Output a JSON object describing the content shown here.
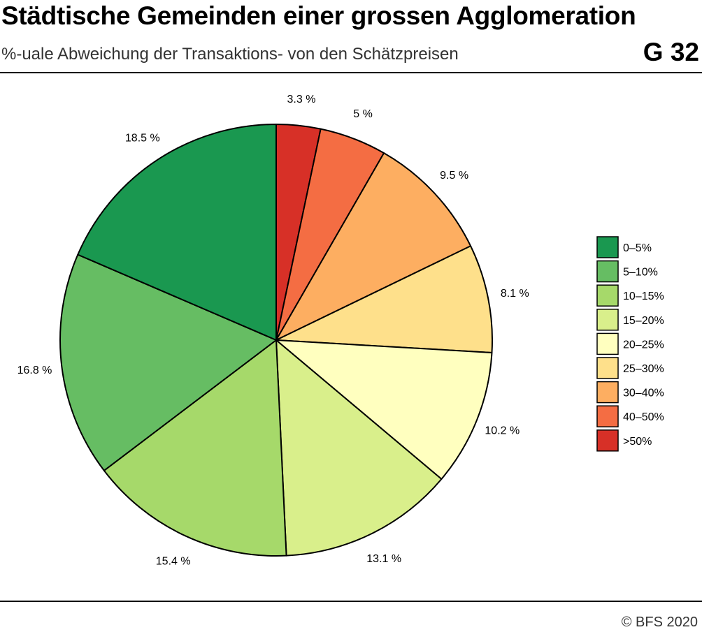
{
  "header": {
    "title": "Städtische Gemeinden einer grossen Agglomeration",
    "subtitle": "%-uale Abweichung der Transaktions- von den Schätzpreisen",
    "chart_id": "G 32"
  },
  "footer": {
    "source": "© BFS 2020"
  },
  "chart_data": {
    "type": "pie",
    "title": "Städtische Gemeinden einer grossen Agglomeration",
    "subtitle": "%-uale Abweichung der Transaktions- von den Schätzpreisen",
    "start": "12 o'clock",
    "direction": "clockwise",
    "legend_position": "right",
    "slices": [
      {
        "category": ">50%",
        "value": 3.3,
        "label": "3.3 %",
        "color": "#d73027"
      },
      {
        "category": "40–50%",
        "value": 5.0,
        "label": "5 %",
        "color": "#f46d43"
      },
      {
        "category": "30–40%",
        "value": 9.5,
        "label": "9.5 %",
        "color": "#fdae61"
      },
      {
        "category": "25–30%",
        "value": 8.1,
        "label": "8.1 %",
        "color": "#fee08b"
      },
      {
        "category": "20–25%",
        "value": 10.2,
        "label": "10.2 %",
        "color": "#ffffbf"
      },
      {
        "category": "15–20%",
        "value": 13.1,
        "label": "13.1 %",
        "color": "#d9ef8b"
      },
      {
        "category": "10–15%",
        "value": 15.4,
        "label": "15.4 %",
        "color": "#a6d96a"
      },
      {
        "category": "5–10%",
        "value": 16.8,
        "label": "16.8 %",
        "color": "#66bd63"
      },
      {
        "category": "0–5%",
        "value": 18.5,
        "label": "18.5 %",
        "color": "#1a9850"
      }
    ],
    "legend": [
      {
        "label": "0–5%",
        "color": "#1a9850"
      },
      {
        "label": "5–10%",
        "color": "#66bd63"
      },
      {
        "label": "10–15%",
        "color": "#a6d96a"
      },
      {
        "label": "15–20%",
        "color": "#d9ef8b"
      },
      {
        "label": "20–25%",
        "color": "#ffffbf"
      },
      {
        "label": "25–30%",
        "color": "#fee08b"
      },
      {
        "label": "30–40%",
        "color": "#fdae61"
      },
      {
        "label": "40–50%",
        "color": "#f46d43"
      },
      {
        "label": ">50%",
        "color": "#d73027"
      }
    ]
  }
}
